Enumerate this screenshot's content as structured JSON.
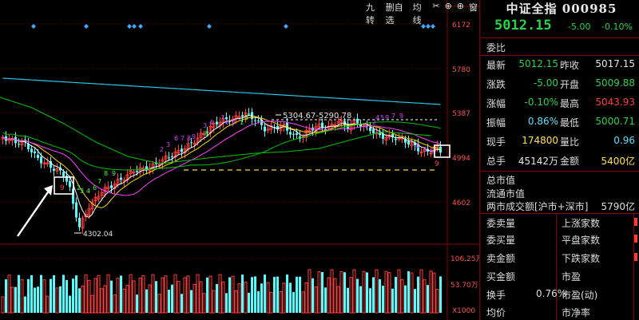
{
  "toolbar": {
    "items": [
      "九转",
      "删自选",
      "均线",
      "✂",
      "⊕",
      "⊕",
      "窗"
    ]
  },
  "chart": {
    "price_axis": [
      "6172",
      "5780",
      "5387",
      "4994",
      "4602"
    ],
    "vol_axis": [
      "106.25万",
      "53.70万",
      "X1000"
    ],
    "annotation_range": "5304.67-5290.78",
    "annotation_low": "4302.04",
    "label_9_left": "9",
    "label_9_right": "9",
    "colors": {
      "up": "#ff3c3c",
      "down": "#54ffff",
      "ma_white": "#ffffff",
      "ma_yellow": "#ffd700",
      "ma_magenta": "#ff40ff",
      "ma_green": "#00c000",
      "ma_cyan": "#28c8e6",
      "dash": "#f0e040",
      "seq_magenta": "#d040ff",
      "seq_green": "#40ff40"
    }
  },
  "panel": {
    "title": "中证全指 000985",
    "price": "5012.15",
    "change": "-5.00",
    "change_pct": "-0.10%",
    "weibi_label": "委比",
    "rows": [
      {
        "l1": "最新",
        "v1": "5012.15",
        "c1": "green",
        "l2": "昨收",
        "v2": "5017.15",
        "c2": "white"
      },
      {
        "l1": "涨跌",
        "v1": "-5.00",
        "c1": "green",
        "l2": "开盘",
        "v2": "5009.88",
        "c2": "green"
      },
      {
        "l1": "涨幅",
        "v1": "-0.10%",
        "c1": "green",
        "l2": "最高",
        "v2": "5043.93",
        "c2": "red"
      },
      {
        "l1": "振幅",
        "v1": "0.86%",
        "c1": "cyan",
        "l2": "最低",
        "v2": "5000.71",
        "c2": "green"
      },
      {
        "l1": "现手",
        "v1": "174800",
        "c1": "yellow",
        "l2": "量比",
        "v2": "0.96",
        "c2": "cyan"
      },
      {
        "l1": "总手",
        "v1": "45142万",
        "c1": "white",
        "l2": "金额",
        "v2": "5400亿",
        "c2": "yellow"
      }
    ],
    "market": {
      "total_cap": "总市值",
      "float_cap": "流通市值",
      "two_cities": "两市成交额[沪市+深市]",
      "two_cities_value": "5790亿"
    },
    "lower": {
      "left": [
        "委卖量",
        "委买量",
        "卖金额",
        "买金额",
        "换手",
        "均价"
      ],
      "turnover": "0.76%",
      "right": [
        "上涨家数",
        "平盘家数",
        "下跌家数",
        "市盈",
        "市盈(动)",
        "市净率"
      ]
    }
  }
}
